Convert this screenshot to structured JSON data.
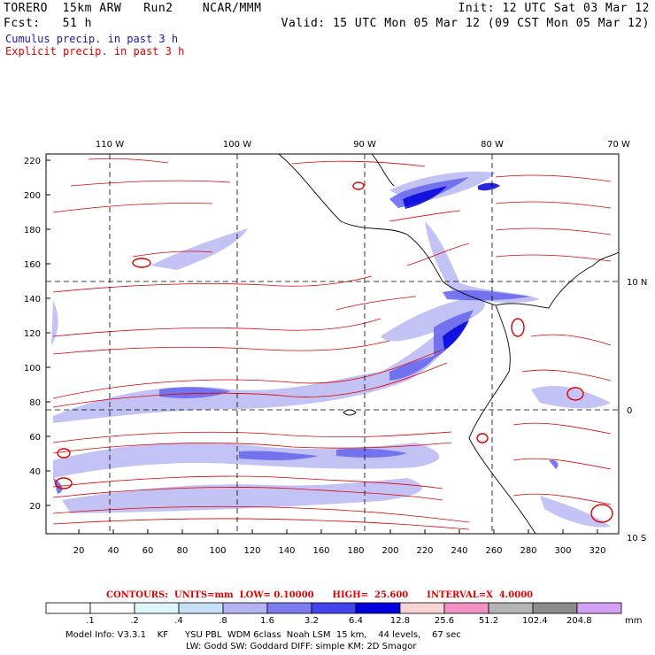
{
  "header": {
    "line1_left": "TORERO  15km ARW   Run2    NCAR/MMM",
    "line1_right": "Init: 12 UTC Sat 03 Mar 12",
    "line2_left": "Fcst:   51 h",
    "line2_right": "Valid: 15 UTC Mon 05 Mar 12 (09 CST Mon 05 Mar 12)",
    "legend_cumulus": "Cumulus precip. in past 3 h",
    "legend_explicit": "Explicit precip. in past 3 h"
  },
  "map": {
    "lon_labels": [
      "110 W",
      "100 W",
      "90 W",
      "80 W",
      "70 W"
    ],
    "lat_labels": [
      "10 N",
      "0",
      "10 S"
    ],
    "y_ticks": [
      "20",
      "40",
      "60",
      "80",
      "100",
      "120",
      "140",
      "160",
      "180",
      "200",
      "220"
    ],
    "x_ticks": [
      "20",
      "40",
      "60",
      "80",
      "100",
      "120",
      "140",
      "160",
      "180",
      "200",
      "220",
      "240",
      "260",
      "280",
      "300",
      "320"
    ]
  },
  "colorbar": {
    "contours_text": "CONTOURS:  UNITS=mm  LOW= 0.10000      HIGH=  25.600      INTERVAL=X  4.0000",
    "unit": "mm",
    "labels": [
      ".1",
      ".2",
      ".4",
      ".8",
      "1.6",
      "3.2",
      "6.4",
      "12.8",
      "25.6",
      "51.2",
      "102.4",
      "204.8"
    ],
    "colors": [
      "#ffffff",
      "#ffffff",
      "#dff6f8",
      "#c8e0f6",
      "#b4b4f2",
      "#7c7cf0",
      "#4444ee",
      "#0000dd",
      "#f6d4d4",
      "#f093c4",
      "#b4b4b4",
      "#8c8c8c",
      "#d4a0f4"
    ]
  },
  "model_info": {
    "line1": "Model Info: V3.3.1    KF      YSU PBL  WDM 6class  Noah LSM  15 km,    44 levels,    67 sec",
    "line2": "LW: Godd SW: Goddard DIFF: simple KM: 2D Smagor"
  }
}
